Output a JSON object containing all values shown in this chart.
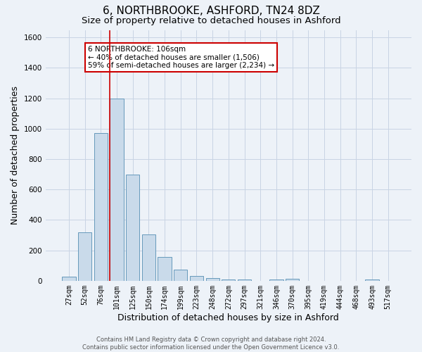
{
  "title": "6, NORTHBROOKE, ASHFORD, TN24 8DZ",
  "subtitle": "Size of property relative to detached houses in Ashford",
  "xlabel": "Distribution of detached houses by size in Ashford",
  "ylabel": "Number of detached properties",
  "bar_labels": [
    "27sqm",
    "52sqm",
    "76sqm",
    "101sqm",
    "125sqm",
    "150sqm",
    "174sqm",
    "199sqm",
    "223sqm",
    "248sqm",
    "272sqm",
    "297sqm",
    "321sqm",
    "346sqm",
    "370sqm",
    "395sqm",
    "419sqm",
    "444sqm",
    "468sqm",
    "493sqm",
    "517sqm"
  ],
  "bar_heights": [
    25,
    320,
    970,
    1200,
    700,
    305,
    155,
    75,
    30,
    20,
    10,
    10,
    0,
    10,
    15,
    0,
    0,
    0,
    0,
    10,
    0
  ],
  "bar_color": "#c9daea",
  "bar_edge_color": "#6699bb",
  "grid_color": "#c8d4e4",
  "background_color": "#edf2f8",
  "vline_color": "#cc0000",
  "annotation_text": "6 NORTHBROOKE: 106sqm\n← 40% of detached houses are smaller (1,506)\n59% of semi-detached houses are larger (2,234) →",
  "annotation_box_color": "#ffffff",
  "annotation_box_edge": "#cc0000",
  "ylim": [
    0,
    1650
  ],
  "yticks": [
    0,
    200,
    400,
    600,
    800,
    1000,
    1200,
    1400,
    1600
  ],
  "footnote": "Contains HM Land Registry data © Crown copyright and database right 2024.\nContains public sector information licensed under the Open Government Licence v3.0.",
  "title_fontsize": 11,
  "subtitle_fontsize": 9.5,
  "xlabel_fontsize": 9,
  "ylabel_fontsize": 9,
  "tick_fontsize": 7,
  "annotation_fontsize": 7.5,
  "footnote_fontsize": 6
}
